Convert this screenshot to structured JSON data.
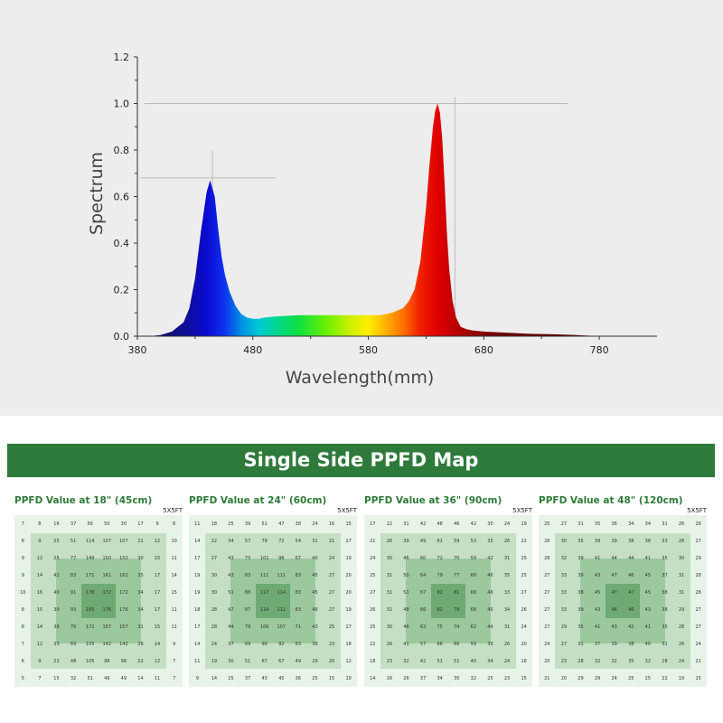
{
  "chart_data": {
    "type": "area",
    "title": "",
    "xlabel": "Wavelength(mm)",
    "ylabel": "Spectrum",
    "xlim": [
      380,
      830
    ],
    "ylim": [
      0,
      1.2
    ],
    "xticks": [
      380,
      480,
      580,
      680,
      780
    ],
    "yticks": [
      0.0,
      0.2,
      0.4,
      0.6,
      0.8,
      1.0,
      1.2
    ],
    "ytick_labels": [
      "0.0",
      "0.2",
      "0.4",
      "0.6",
      "0.8",
      "1.0",
      "1.2"
    ],
    "series": [
      {
        "name": "Spectrum",
        "x": [
          390,
          400,
          410,
          420,
          425,
          430,
          435,
          440,
          443,
          447,
          450,
          453,
          456,
          460,
          465,
          470,
          475,
          480,
          485,
          490,
          500,
          520,
          540,
          560,
          580,
          590,
          600,
          610,
          615,
          620,
          625,
          630,
          633,
          636,
          638,
          640,
          642,
          644,
          646,
          648,
          650,
          653,
          656,
          660,
          665,
          670,
          680,
          700,
          720,
          740,
          760,
          780
        ],
        "values": [
          0.0,
          0.005,
          0.02,
          0.06,
          0.12,
          0.25,
          0.45,
          0.62,
          0.67,
          0.6,
          0.46,
          0.34,
          0.26,
          0.19,
          0.13,
          0.095,
          0.08,
          0.075,
          0.075,
          0.08,
          0.085,
          0.09,
          0.09,
          0.09,
          0.09,
          0.09,
          0.1,
          0.12,
          0.15,
          0.2,
          0.32,
          0.55,
          0.74,
          0.9,
          0.97,
          1.0,
          0.96,
          0.85,
          0.66,
          0.45,
          0.29,
          0.15,
          0.08,
          0.04,
          0.03,
          0.025,
          0.02,
          0.015,
          0.01,
          0.008,
          0.005,
          0.0
        ]
      }
    ],
    "reference_lines": [
      {
        "label": "peak_blue",
        "x": 445,
        "y": 0.68
      },
      {
        "label": "peak_red",
        "x": 655,
        "y": 1.0
      }
    ]
  },
  "banner": {
    "title": "Single Side PPFD Map"
  },
  "ppfd_maps": [
    {
      "title": "PPFD Value at 18\" (45cm)",
      "size": "5X5FT",
      "grid": [
        [
          "7",
          "8",
          "16",
          "37",
          "56",
          "50",
          "30",
          "17",
          "9",
          "6"
        ],
        [
          "8",
          "9",
          "25",
          "51",
          "114",
          "107",
          "107",
          "21",
          "12",
          "10"
        ],
        [
          "9",
          "12",
          "25",
          "77",
          "149",
          "150",
          "150",
          "30",
          "15",
          "11"
        ],
        [
          "9",
          "14",
          "42",
          "83",
          "171",
          "161",
          "161",
          "35",
          "17",
          "14"
        ],
        [
          "10",
          "16",
          "40",
          "91",
          "178",
          "172",
          "172",
          "34",
          "17",
          "15"
        ],
        [
          "8",
          "15",
          "39",
          "93",
          "165",
          "176",
          "176",
          "34",
          "17",
          "11"
        ],
        [
          "8",
          "14",
          "38",
          "76",
          "172",
          "157",
          "157",
          "31",
          "15",
          "11"
        ],
        [
          "7",
          "12",
          "33",
          "69",
          "155",
          "142",
          "142",
          "28",
          "14",
          "9"
        ],
        [
          "6",
          "9",
          "23",
          "48",
          "105",
          "98",
          "98",
          "22",
          "12",
          "7"
        ],
        [
          "5",
          "7",
          "15",
          "32",
          "51",
          "49",
          "49",
          "14",
          "11",
          "7"
        ]
      ]
    },
    {
      "title": "PPFD Value at 24\" (60cm)",
      "size": "5X5FT",
      "grid": [
        [
          "11",
          "18",
          "25",
          "39",
          "51",
          "47",
          "38",
          "24",
          "16",
          "15"
        ],
        [
          "14",
          "22",
          "34",
          "57",
          "79",
          "72",
          "54",
          "31",
          "21",
          "17"
        ],
        [
          "17",
          "27",
          "43",
          "75",
          "101",
          "98",
          "67",
          "40",
          "24",
          "19"
        ],
        [
          "19",
          "30",
          "43",
          "83",
          "111",
          "111",
          "83",
          "45",
          "27",
          "20"
        ],
        [
          "19",
          "30",
          "51",
          "88",
          "117",
          "114",
          "83",
          "45",
          "27",
          "20"
        ],
        [
          "18",
          "28",
          "47",
          "87",
          "114",
          "112",
          "83",
          "46",
          "27",
          "19"
        ],
        [
          "17",
          "28",
          "44",
          "79",
          "106",
          "107",
          "71",
          "43",
          "25",
          "17"
        ],
        [
          "14",
          "24",
          "37",
          "69",
          "90",
          "92",
          "63",
          "38",
          "23",
          "18"
        ],
        [
          "11",
          "19",
          "30",
          "51",
          "67",
          "67",
          "49",
          "29",
          "20",
          "12"
        ],
        [
          "9",
          "14",
          "25",
          "37",
          "43",
          "45",
          "36",
          "25",
          "15",
          "10"
        ]
      ]
    },
    {
      "title": "PPFD Value at 36\" (90cm)",
      "size": "5X5FT",
      "grid": [
        [
          "17",
          "22",
          "31",
          "42",
          "48",
          "46",
          "42",
          "30",
          "24",
          "19"
        ],
        [
          "21",
          "26",
          "39",
          "49",
          "61",
          "59",
          "53",
          "35",
          "26",
          "22"
        ],
        [
          "24",
          "30",
          "46",
          "60",
          "72",
          "70",
          "59",
          "42",
          "31",
          "25"
        ],
        [
          "25",
          "31",
          "50",
          "64",
          "79",
          "77",
          "68",
          "46",
          "35",
          "25"
        ],
        [
          "27",
          "31",
          "51",
          "67",
          "82",
          "81",
          "68",
          "46",
          "33",
          "27"
        ],
        [
          "26",
          "32",
          "48",
          "66",
          "82",
          "79",
          "68",
          "45",
          "34",
          "26"
        ],
        [
          "25",
          "30",
          "46",
          "62",
          "75",
          "74",
          "62",
          "44",
          "31",
          "24"
        ],
        [
          "22",
          "26",
          "41",
          "57",
          "68",
          "66",
          "59",
          "39",
          "26",
          "20"
        ],
        [
          "18",
          "23",
          "32",
          "42",
          "51",
          "51",
          "40",
          "34",
          "24",
          "18"
        ],
        [
          "14",
          "16",
          "26",
          "37",
          "34",
          "35",
          "32",
          "25",
          "23",
          "15"
        ]
      ]
    },
    {
      "title": "PPFD Value at 48\" (120cm)",
      "size": "5X5FT",
      "grid": [
        [
          "25",
          "27",
          "31",
          "35",
          "36",
          "34",
          "34",
          "31",
          "26",
          "26"
        ],
        [
          "26",
          "30",
          "35",
          "39",
          "39",
          "38",
          "38",
          "33",
          "28",
          "27"
        ],
        [
          "28",
          "32",
          "39",
          "41",
          "44",
          "44",
          "41",
          "35",
          "30",
          "29"
        ],
        [
          "27",
          "33",
          "39",
          "43",
          "47",
          "46",
          "45",
          "37",
          "31",
          "28"
        ],
        [
          "27",
          "33",
          "38",
          "45",
          "47",
          "47",
          "45",
          "38",
          "31",
          "28"
        ],
        [
          "27",
          "33",
          "39",
          "43",
          "46",
          "46",
          "43",
          "38",
          "29",
          "27"
        ],
        [
          "27",
          "29",
          "35",
          "41",
          "43",
          "42",
          "41",
          "35",
          "28",
          "27"
        ],
        [
          "24",
          "27",
          "31",
          "37",
          "39",
          "38",
          "40",
          "31",
          "26",
          "24"
        ],
        [
          "20",
          "23",
          "28",
          "32",
          "32",
          "35",
          "32",
          "28",
          "24",
          "21"
        ],
        [
          "21",
          "20",
          "29",
          "29",
          "24",
          "25",
          "25",
          "22",
          "19",
          "15"
        ]
      ]
    }
  ]
}
